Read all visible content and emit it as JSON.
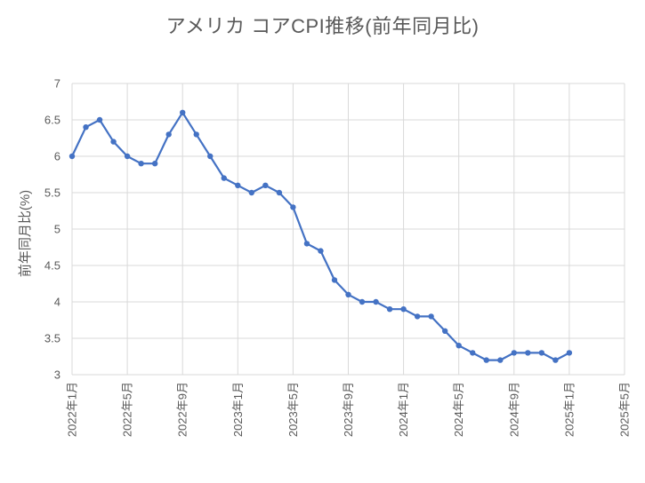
{
  "page": {
    "background": "#FFFFFF"
  },
  "chart_data": {
    "type": "line",
    "title": "アメリカ コアCPI推移(前年同月比)",
    "ylabel": "前年同月比(%)",
    "xlabel": "",
    "ylim": [
      3,
      7
    ],
    "ytick_step": 0.5,
    "grid": true,
    "legend": "none",
    "x_total_slots": 41,
    "x_tick_interval": 4,
    "x_tick_labels": [
      "2022年1月",
      "2022年5月",
      "2022年9月",
      "2023年1月",
      "2023年5月",
      "2023年9月",
      "2024年1月",
      "2024年5月",
      "2024年9月",
      "2025年1月",
      "2025年5月"
    ],
    "categories": [
      "2022年1月",
      "2022年2月",
      "2022年3月",
      "2022年4月",
      "2022年5月",
      "2022年6月",
      "2022年7月",
      "2022年8月",
      "2022年9月",
      "2022年10月",
      "2022年11月",
      "2022年12月",
      "2023年1月",
      "2023年2月",
      "2023年3月",
      "2023年4月",
      "2023年5月",
      "2023年6月",
      "2023年7月",
      "2023年8月",
      "2023年9月",
      "2023年10月",
      "2023年11月",
      "2023年12月",
      "2024年1月",
      "2024年2月",
      "2024年3月",
      "2024年4月",
      "2024年5月",
      "2024年6月",
      "2024年7月",
      "2024年8月",
      "2024年9月",
      "2024年10月",
      "2024年11月",
      "2024年12月",
      "2025年1月"
    ],
    "values": [
      6.0,
      6.4,
      6.5,
      6.2,
      6.0,
      5.9,
      5.9,
      6.3,
      6.6,
      6.3,
      6.0,
      5.7,
      5.6,
      5.5,
      5.6,
      5.5,
      5.3,
      4.8,
      4.7,
      4.3,
      4.1,
      4.0,
      4.0,
      3.9,
      3.9,
      3.8,
      3.8,
      3.6,
      3.4,
      3.3,
      3.2,
      3.2,
      3.3,
      3.3,
      3.3,
      3.2,
      3.3
    ],
    "colors": {
      "line": "#4472C4",
      "marker": "#4472C4",
      "grid": "#D9D9D9",
      "axis_text": "#595959",
      "title_text": "#595959",
      "background": "#FFFFFF"
    }
  }
}
